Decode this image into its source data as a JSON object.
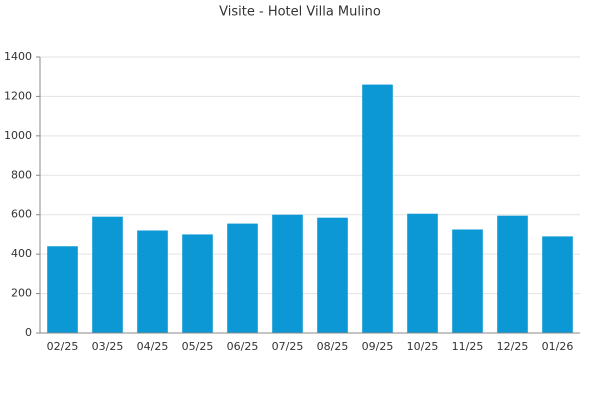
{
  "chart_data": {
    "type": "bar",
    "title": "Visite - Hotel Villa Mulino",
    "categories": [
      "02/25",
      "03/25",
      "04/25",
      "05/25",
      "06/25",
      "07/25",
      "08/25",
      "09/25",
      "10/25",
      "11/25",
      "12/25",
      "01/26"
    ],
    "values": [
      440,
      590,
      520,
      500,
      555,
      600,
      585,
      1260,
      605,
      525,
      595,
      490
    ],
    "color": "#0b98d4",
    "ylim": [
      0,
      1400
    ],
    "yticks": [
      0,
      200,
      400,
      600,
      800,
      1000,
      1200,
      1400
    ],
    "grid": true
  }
}
